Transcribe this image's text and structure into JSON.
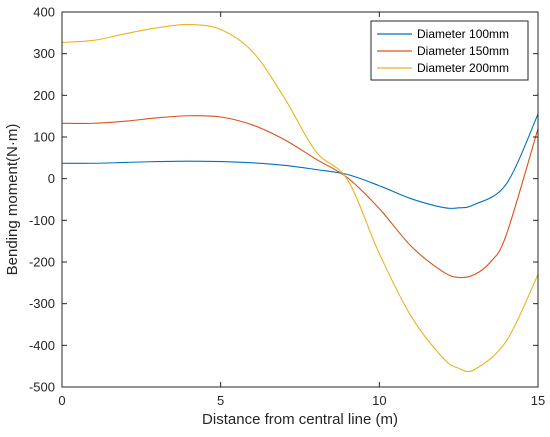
{
  "chart_data": {
    "type": "line",
    "title": "",
    "xlabel": "Distance from central line (m)",
    "ylabel": "Bending moment(N·m)",
    "xlim": [
      0,
      15
    ],
    "ylim": [
      -500,
      400
    ],
    "xticks": [
      0,
      5,
      10,
      15
    ],
    "yticks": [
      -500,
      -400,
      -300,
      -200,
      -100,
      0,
      100,
      200,
      300,
      400
    ],
    "xtick_labels": [
      "0",
      "5",
      "10",
      "15"
    ],
    "ytick_labels": [
      "-500",
      "-400",
      "-300",
      "-200",
      "-100",
      "0",
      "100",
      "200",
      "300",
      "400"
    ],
    "grid": false,
    "legend_position": "top-right",
    "series": [
      {
        "name": "Diameter 100mm",
        "color": "#0072BD",
        "x": [
          0,
          1,
          2,
          3,
          4,
          5,
          6,
          7,
          8,
          9,
          10,
          11,
          12,
          12.5,
          13,
          14,
          15
        ],
        "y": [
          37,
          37,
          39,
          41,
          42,
          41,
          38,
          32,
          22,
          10,
          -17,
          -48,
          -69,
          -70,
          -62,
          -13,
          155
        ]
      },
      {
        "name": "Diameter 150mm",
        "color": "#D95319",
        "x": [
          0,
          1,
          2,
          3,
          4,
          5,
          6,
          7,
          8,
          9,
          10,
          11,
          12,
          12.5,
          13,
          13.5,
          14,
          15
        ],
        "y": [
          133,
          133,
          138,
          146,
          151,
          148,
          129,
          94,
          47,
          2,
          -72,
          -162,
          -223,
          -237,
          -230,
          -200,
          -135,
          120
        ]
      },
      {
        "name": "Diameter 200mm",
        "color": "#EDB120",
        "x": [
          0,
          1,
          2,
          3,
          4,
          5,
          6,
          7,
          8,
          9,
          10,
          11,
          12,
          12.5,
          13,
          14,
          15
        ],
        "y": [
          327,
          332,
          348,
          362,
          370,
          358,
          305,
          195,
          65,
          -3,
          -180,
          -330,
          -430,
          -455,
          -458,
          -390,
          -230
        ]
      }
    ]
  }
}
